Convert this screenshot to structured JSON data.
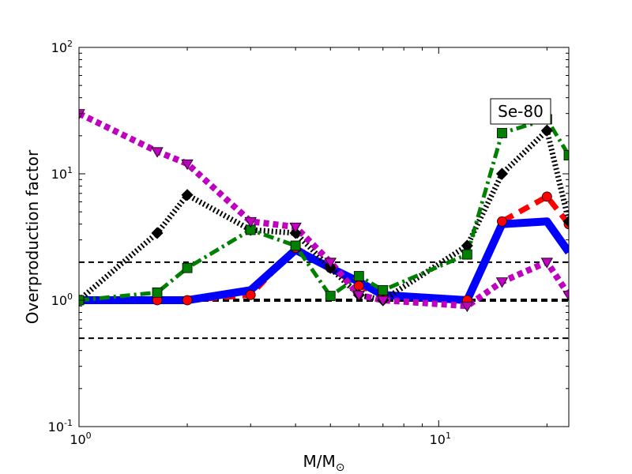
{
  "chart_data": {
    "type": "line",
    "xscale": "log",
    "yscale": "log",
    "xlim": [
      1,
      23
    ],
    "ylim": [
      0.1,
      100
    ],
    "xlabel": "M/M",
    "xlabel_sub": "⊙",
    "ylabel": "Overproduction factor",
    "x_ticks": [
      {
        "base": "10",
        "exp": "0",
        "value": 1
      },
      {
        "base": "10",
        "exp": "1",
        "value": 10
      }
    ],
    "y_ticks": [
      {
        "base": "10",
        "exp": "-1",
        "value": 0.1
      },
      {
        "base": "10",
        "exp": "0",
        "value": 1
      },
      {
        "base": "10",
        "exp": "1",
        "value": 10
      },
      {
        "base": "10",
        "exp": "2",
        "value": 100
      }
    ],
    "annotation": "Se-80",
    "reference_lines": [
      {
        "y": 2,
        "width": "thin"
      },
      {
        "y": 1,
        "width": "thick"
      },
      {
        "y": 0.5,
        "width": "thin"
      }
    ],
    "series": [
      {
        "color": "#ff0000",
        "line": "dashed",
        "marker": "circle",
        "x": [
          1,
          1.65,
          2,
          3,
          4,
          5,
          6,
          7,
          12,
          15,
          20,
          23
        ],
        "y": [
          1.0,
          1.0,
          1.0,
          1.1,
          2.6,
          1.8,
          1.3,
          1.1,
          1.0,
          4.2,
          6.6,
          4.0
        ]
      },
      {
        "color": "#0000ff",
        "line": "solid",
        "marker": "none",
        "x": [
          1,
          2,
          3,
          4,
          5,
          6,
          7,
          12,
          15,
          20,
          23
        ],
        "y": [
          1.0,
          1.0,
          1.2,
          2.5,
          1.8,
          1.4,
          1.1,
          1.0,
          4.0,
          4.2,
          2.4
        ]
      },
      {
        "color": "#000000",
        "line": "dotted",
        "marker": "diamond",
        "x": [
          1,
          1.65,
          2,
          3,
          4,
          5,
          6,
          7,
          12,
          15,
          20,
          23
        ],
        "y": [
          1.0,
          3.4,
          6.8,
          3.6,
          3.4,
          1.8,
          1.1,
          1.0,
          2.7,
          10.0,
          22.0,
          4.2
        ]
      },
      {
        "color": "#008000",
        "line": "dashdot",
        "marker": "square",
        "x": [
          1,
          1.65,
          2,
          3,
          4,
          5,
          6,
          7,
          12,
          15,
          20,
          23
        ],
        "y": [
          1.0,
          1.15,
          1.8,
          3.6,
          2.7,
          1.08,
          1.55,
          1.2,
          2.3,
          21.0,
          27.0,
          14.0
        ]
      },
      {
        "color": "#bf00bf",
        "line": "dotted",
        "marker": "triangle-down",
        "x": [
          1,
          1.65,
          2,
          3,
          4,
          5,
          6,
          7,
          12,
          15,
          20,
          23
        ],
        "y": [
          30.0,
          15.0,
          12.0,
          4.2,
          3.8,
          2.0,
          1.1,
          1.0,
          0.9,
          1.4,
          2.0,
          1.1
        ]
      }
    ]
  }
}
